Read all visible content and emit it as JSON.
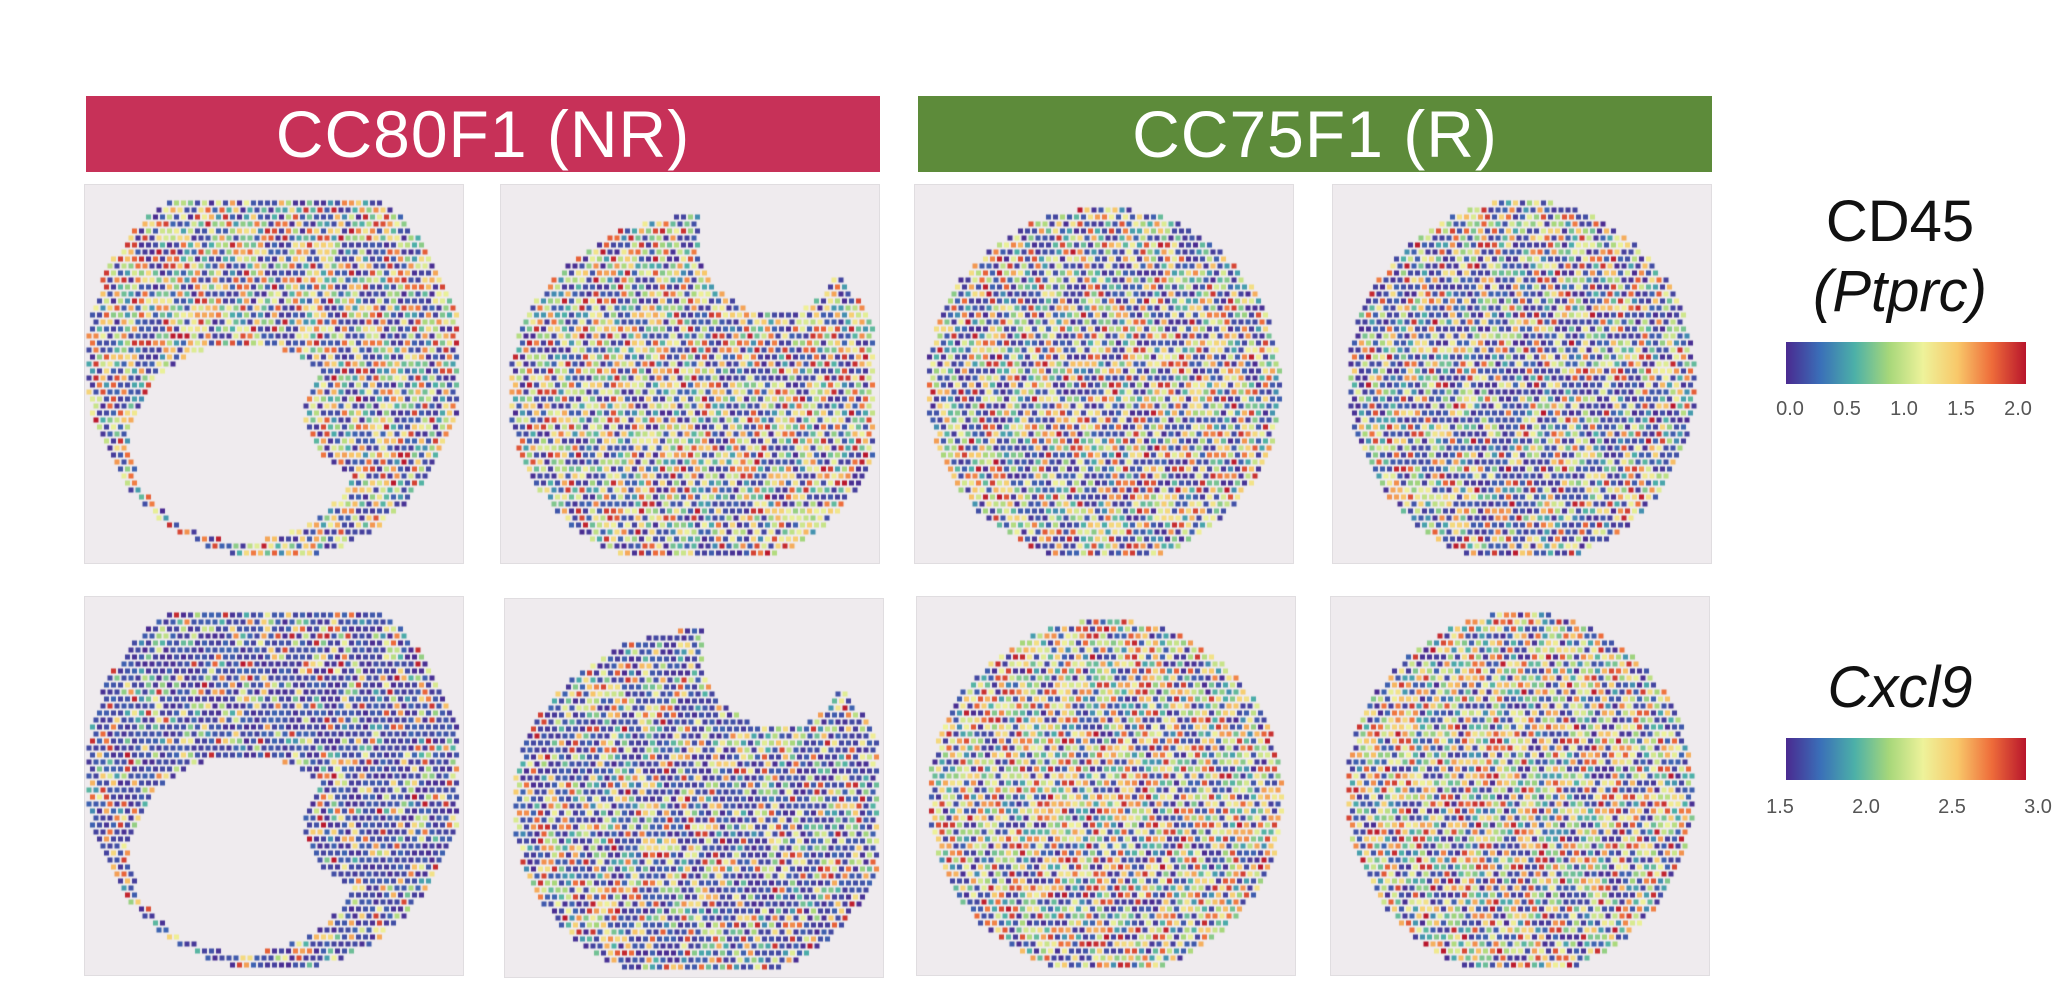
{
  "groups": [
    {
      "label": "CC80F1 (NR)",
      "color": "#c73158"
    },
    {
      "label": "CC75F1 (R)",
      "color": "#5d8b3a"
    }
  ],
  "legends": [
    {
      "title": "CD45",
      "subtitle": "(Ptprc)",
      "ticks": [
        "0.0",
        "0.5",
        "1.0",
        "1.5",
        "2.0"
      ],
      "range": [
        0.0,
        2.0
      ]
    },
    {
      "title": "Cxcl9",
      "subtitle": "",
      "ticks": [
        "1.5",
        "2.0",
        "2.5",
        "3.0"
      ],
      "range": [
        1.5,
        3.0
      ]
    }
  ],
  "colormap": [
    "#4a2a90",
    "#3a6fb8",
    "#4cb0a8",
    "#a6d77a",
    "#eef29a",
    "#f8c86a",
    "#ee6c3a",
    "#b8152c"
  ],
  "panels": [
    {
      "row": "CD45 (Ptprc)",
      "group": "CC80F1 (NR)",
      "shape": "nr-left",
      "mean_level": 0.55
    },
    {
      "row": "CD45 (Ptprc)",
      "group": "CC80F1 (NR)",
      "shape": "nr-right",
      "mean_level": 0.55
    },
    {
      "row": "CD45 (Ptprc)",
      "group": "CC75F1 (R)",
      "shape": "r-left",
      "mean_level": 0.5
    },
    {
      "row": "CD45 (Ptprc)",
      "group": "CC75F1 (R)",
      "shape": "r-right",
      "mean_level": 0.4
    },
    {
      "row": "Cxcl9",
      "group": "CC80F1 (NR)",
      "shape": "nr-left",
      "mean_level": 0.12
    },
    {
      "row": "Cxcl9",
      "group": "CC80F1 (NR)",
      "shape": "nr-right",
      "mean_level": 0.3
    },
    {
      "row": "Cxcl9",
      "group": "CC75F1 (R)",
      "shape": "r-left",
      "mean_level": 0.6
    },
    {
      "row": "Cxcl9",
      "group": "CC75F1 (R)",
      "shape": "r-right",
      "mean_level": 0.6
    }
  ]
}
